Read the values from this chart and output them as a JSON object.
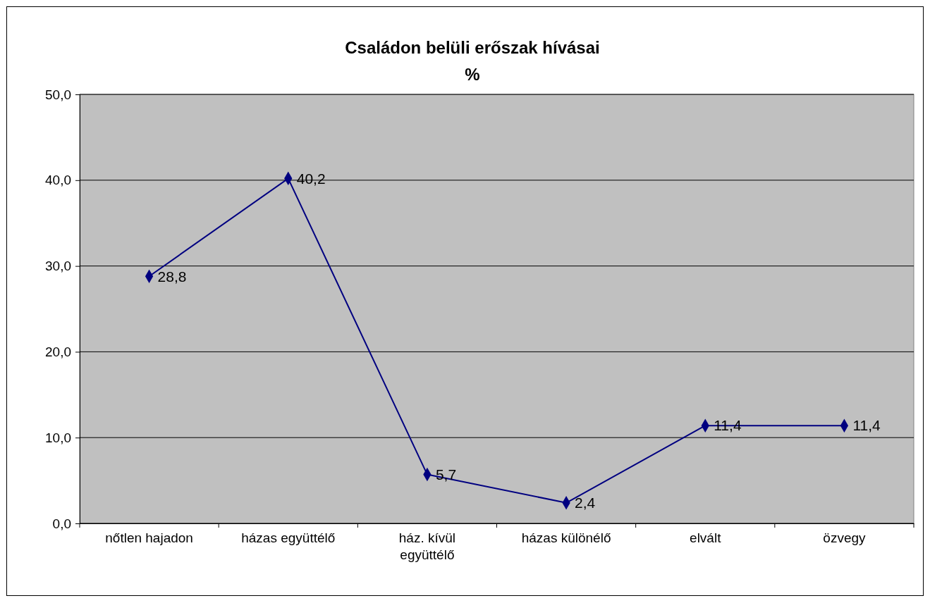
{
  "chart_data": {
    "type": "line",
    "title": "Családon belüli erőszak hívásai",
    "subtitle": "%",
    "categories": [
      "nőtlen hajadon",
      "házas együttélő",
      "ház. kívül együttélő",
      "házas különélő",
      "elvált",
      "özvegy"
    ],
    "series": [
      {
        "color": "#000080",
        "values": [
          28.8,
          40.2,
          5.7,
          2.4,
          11.4,
          11.4
        ],
        "value_labels": [
          "28,8",
          "40,2",
          "5,7",
          "2,4",
          "11,4",
          "11,4"
        ]
      }
    ],
    "ylim": [
      0,
      50
    ],
    "yticks": [
      {
        "value": 0,
        "label": "0,0"
      },
      {
        "value": 10,
        "label": "10,0"
      },
      {
        "value": 20,
        "label": "20,0"
      },
      {
        "value": 30,
        "label": "30,0"
      },
      {
        "value": 40,
        "label": "40,0"
      },
      {
        "value": 50,
        "label": "50,0"
      }
    ],
    "grid": "y",
    "marker": "diamond",
    "line_style": "solid"
  }
}
